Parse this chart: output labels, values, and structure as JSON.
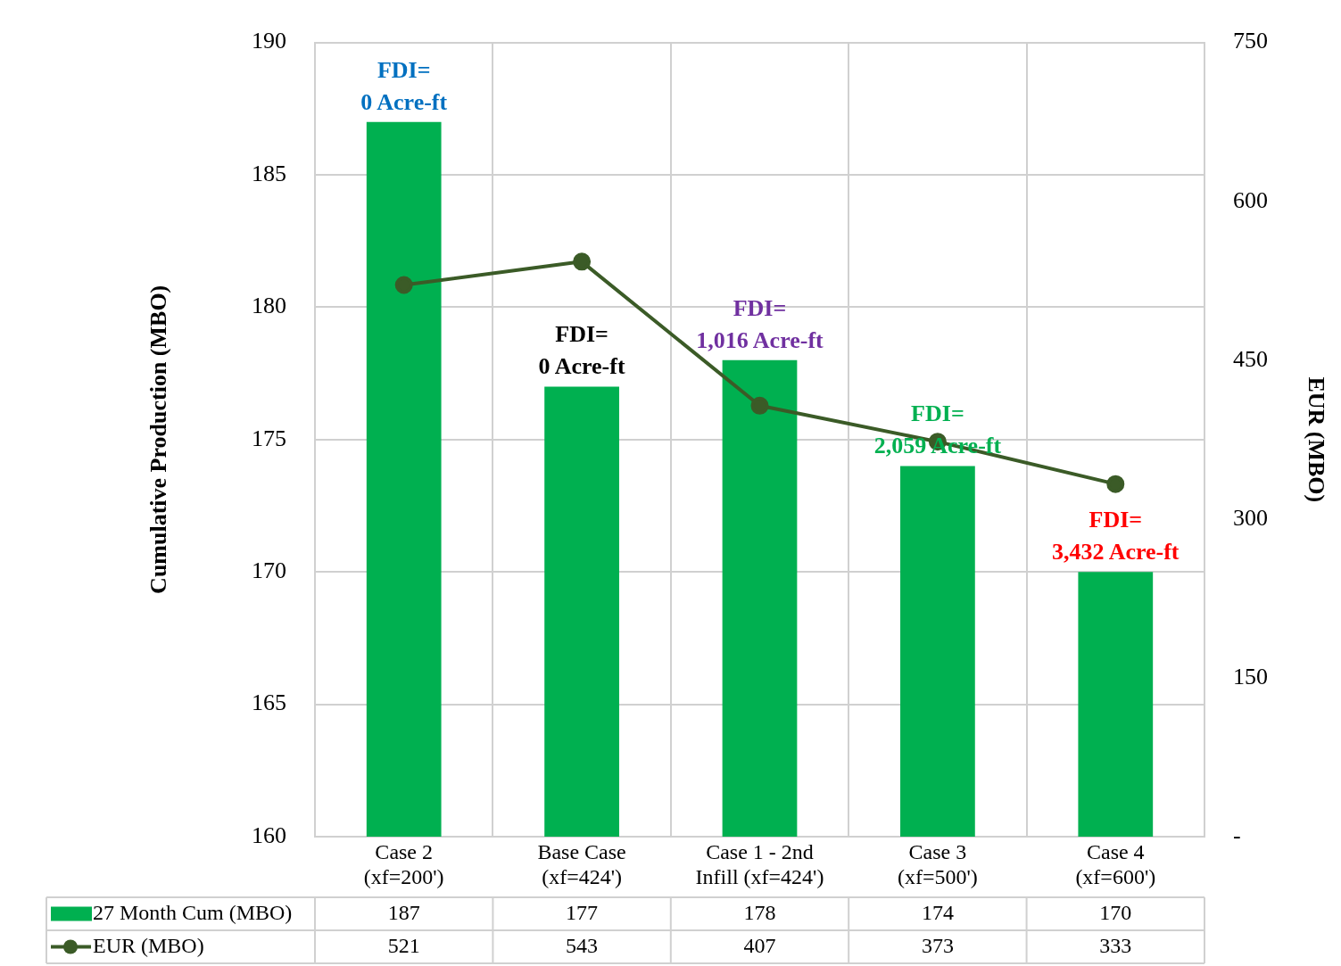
{
  "chart_data": {
    "type": "bar",
    "ylabel": "Cumulative Production (MBO)",
    "y2label": "EUR (MBO)",
    "categories": [
      "Case 2\n(xf=200')",
      "Base Case\n(xf=424')",
      "Case 1 - 2nd\nInfill (xf=424')",
      "Case 3\n(xf=500')",
      "Case 4\n(xf=600')"
    ],
    "series": [
      {
        "name": "27 Month Cum (MBO)",
        "color": "#00b050",
        "values": [
          187,
          177,
          178,
          174,
          170
        ]
      },
      {
        "name": "EUR (MBO)",
        "type": "line",
        "axis": "y2",
        "color": "#3b5b27",
        "marker": "circle",
        "values": [
          521,
          543,
          407,
          373,
          333
        ]
      }
    ],
    "ylim": [
      160,
      190
    ],
    "yticks": [
      160,
      165,
      170,
      175,
      180,
      185,
      190
    ],
    "y2lim": [
      0,
      750
    ],
    "y2ticks": [
      {
        "value": 0,
        "label": "-"
      },
      150,
      300,
      450,
      600,
      750
    ],
    "grid": true,
    "legend": "bottom",
    "data_labels": true,
    "annotations": [
      "FDI=\n0 Acre-ft",
      "FDI=\n0 Acre-ft",
      "FDI=\n1,016 Acre-ft",
      "FDI=\n2,059 Acre-ft",
      "FDI=\n3,432 Acre-ft"
    ]
  }
}
